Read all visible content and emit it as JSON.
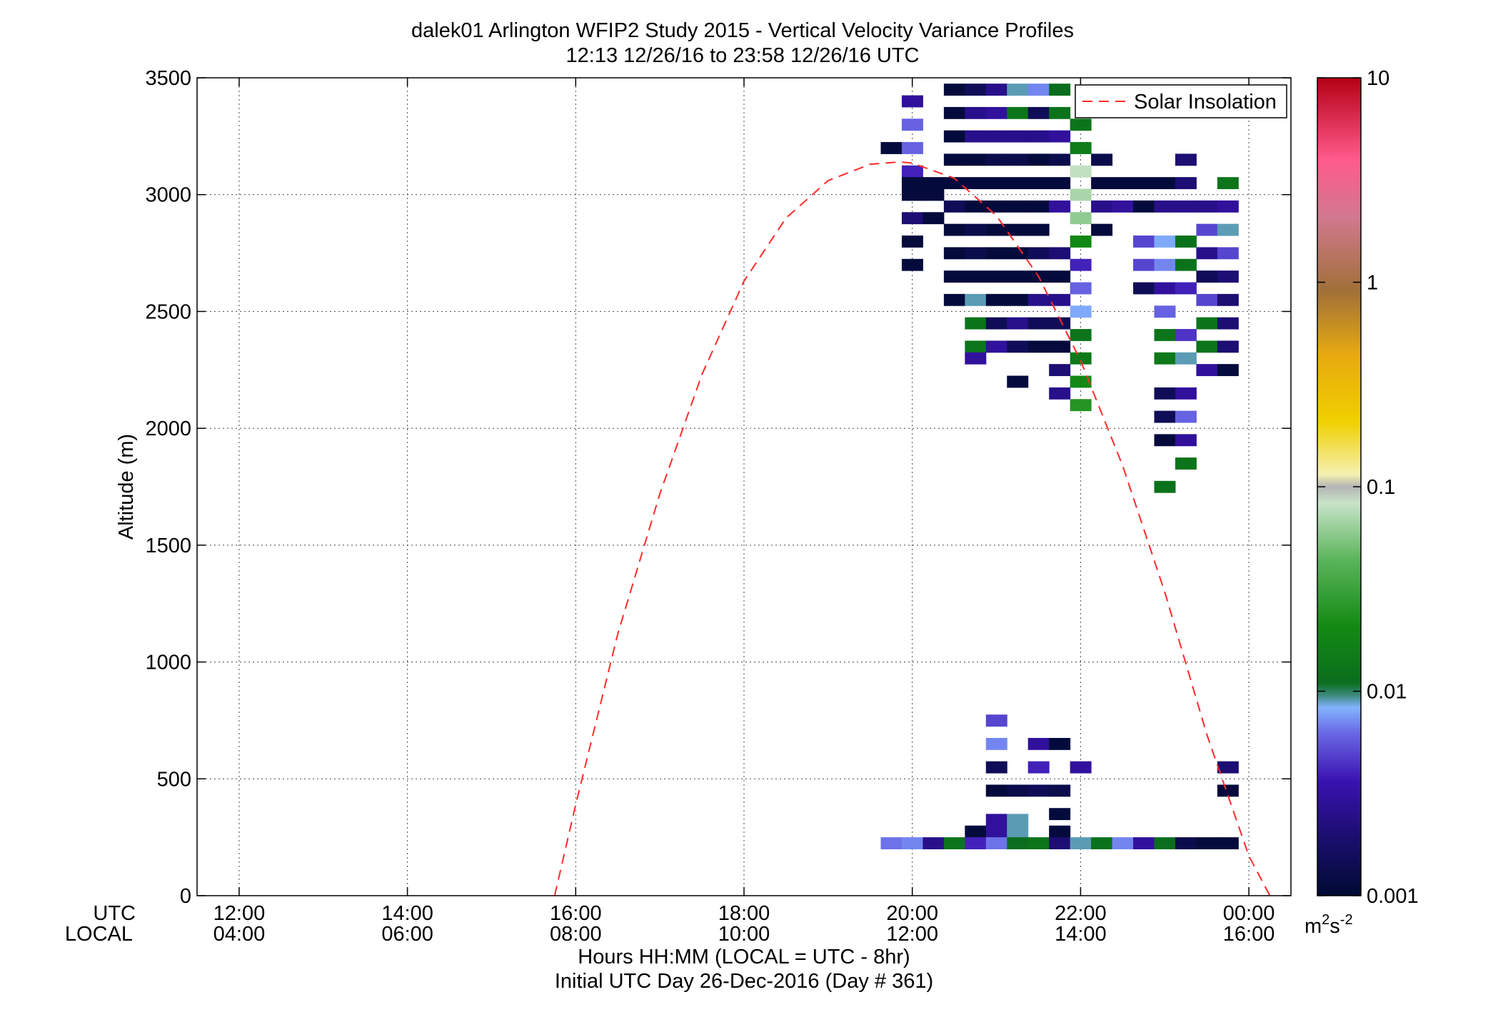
{
  "chart_data": {
    "type": "heatmap",
    "title": "dalek01 Arlington WFIP2 Study 2015 - Vertical Velocity Variance Profiles",
    "subtitle": "12:13 12/26/16 to 23:58 12/26/16  UTC",
    "ylabel": "Altitude (m)",
    "xlabel": "Hours HH:MM  (LOCAL = UTC - 8hr)",
    "xlabel2": "Initial UTC Day 26-Dec-2016 (Day # 361)",
    "x_row_labels": [
      "UTC",
      "LOCAL"
    ],
    "xlim": [
      11.5,
      24.5
    ],
    "ylim": [
      0,
      3500
    ],
    "x_ticks": [
      12,
      14,
      16,
      18,
      20,
      22,
      24
    ],
    "x_tick_labels_utc": [
      "12:00",
      "14:00",
      "16:00",
      "18:00",
      "20:00",
      "22:00",
      "00:00"
    ],
    "x_tick_labels_local": [
      "04:00",
      "06:00",
      "08:00",
      "10:00",
      "12:00",
      "14:00",
      "16:00"
    ],
    "y_ticks": [
      0,
      500,
      1000,
      1500,
      2000,
      2500,
      3000,
      3500
    ],
    "y_tick_labels": [
      "0",
      "500",
      "1000",
      "1500",
      "2000",
      "2500",
      "3000",
      "3500"
    ],
    "grid": true,
    "legend": {
      "position": "top-right",
      "entries": [
        {
          "name": "Solar Insolation",
          "color": "#ff2a2a",
          "style": "dashed"
        }
      ]
    },
    "colorbar": {
      "scale": "log",
      "range": [
        0.001,
        10
      ],
      "ticks": [
        0.001,
        0.01,
        0.1,
        1,
        10
      ],
      "tick_labels": [
        "0.001",
        "0.01",
        "0.1",
        "1",
        "10"
      ],
      "unit_label": "m2s-2"
    },
    "solar_insolation_curve": {
      "x": [
        15.75,
        16.0,
        16.5,
        17.0,
        17.5,
        18.0,
        18.5,
        19.0,
        19.5,
        19.85,
        20.0,
        20.5,
        21.0,
        21.5,
        22.0,
        22.5,
        23.0,
        23.5,
        24.0,
        24.25
      ],
      "y": [
        0,
        390,
        1120,
        1720,
        2230,
        2630,
        2900,
        3060,
        3130,
        3140,
        3135,
        3070,
        2910,
        2650,
        2290,
        1840,
        1300,
        690,
        170,
        -120
      ]
    },
    "cell_width_h": 0.25,
    "cell_height_m": 50,
    "columns": [
      {
        "t": 19.75,
        "cells": [
          [
            3200,
            0.0011
          ],
          [
            225,
            0.0065
          ]
        ]
      },
      {
        "t": 20.0,
        "cells": [
          [
            3400,
            0.003
          ],
          [
            3300,
            0.006
          ],
          [
            3200,
            0.006
          ],
          [
            3100,
            0.004
          ],
          [
            3050,
            0.0011
          ],
          [
            3000,
            0.0011
          ],
          [
            2900,
            0.002
          ],
          [
            2800,
            0.0011
          ],
          [
            2700,
            0.0011
          ],
          [
            225,
            0.007
          ]
        ]
      },
      {
        "t": 20.25,
        "cells": [
          [
            3050,
            0.0011
          ],
          [
            3000,
            0.0011
          ],
          [
            2900,
            0.0011
          ],
          [
            225,
            0.0025
          ]
        ]
      },
      {
        "t": 20.5,
        "cells": [
          [
            3450,
            0.0011
          ],
          [
            3350,
            0.0011
          ],
          [
            3250,
            0.0011
          ],
          [
            3150,
            0.0011
          ],
          [
            3050,
            0.0011
          ],
          [
            2950,
            0.0015
          ],
          [
            2850,
            0.0011
          ],
          [
            2750,
            0.0011
          ],
          [
            2650,
            0.0011
          ],
          [
            2550,
            0.0011
          ],
          [
            225,
            0.013
          ]
        ]
      },
      {
        "t": 20.75,
        "cells": [
          [
            3450,
            0.0015
          ],
          [
            3350,
            0.0025
          ],
          [
            3250,
            0.0025
          ],
          [
            3150,
            0.0011
          ],
          [
            3050,
            0.0011
          ],
          [
            2950,
            0.0011
          ],
          [
            2850,
            0.0013
          ],
          [
            2750,
            0.0013
          ],
          [
            2650,
            0.0011
          ],
          [
            2550,
            0.009
          ],
          [
            2450,
            0.013
          ],
          [
            2350,
            0.013
          ],
          [
            2300,
            0.003
          ],
          [
            275,
            0.0011
          ],
          [
            225,
            0.004
          ]
        ]
      },
      {
        "t": 21.0,
        "cells": [
          [
            3450,
            0.0025
          ],
          [
            3350,
            0.003
          ],
          [
            3250,
            0.0025
          ],
          [
            3150,
            0.0013
          ],
          [
            3050,
            0.0011
          ],
          [
            2950,
            0.0011
          ],
          [
            2850,
            0.0011
          ],
          [
            2750,
            0.0011
          ],
          [
            2650,
            0.0011
          ],
          [
            2550,
            0.0011
          ],
          [
            2450,
            0.0015
          ],
          [
            2350,
            0.003
          ],
          [
            750,
            0.005
          ],
          [
            650,
            0.007
          ],
          [
            550,
            0.0015
          ],
          [
            450,
            0.0011
          ],
          [
            325,
            0.003
          ],
          [
            275,
            0.003
          ],
          [
            225,
            0.0065
          ]
        ]
      },
      {
        "t": 21.25,
        "cells": [
          [
            3450,
            0.009
          ],
          [
            3350,
            0.013
          ],
          [
            3250,
            0.0025
          ],
          [
            3150,
            0.0013
          ],
          [
            3050,
            0.0011
          ],
          [
            2950,
            0.0011
          ],
          [
            2850,
            0.0011
          ],
          [
            2750,
            0.0011
          ],
          [
            2650,
            0.0011
          ],
          [
            2550,
            0.0011
          ],
          [
            2450,
            0.0025
          ],
          [
            2350,
            0.0015
          ],
          [
            2200,
            0.0011
          ],
          [
            450,
            0.0013
          ],
          [
            325,
            0.009
          ],
          [
            275,
            0.009
          ],
          [
            225,
            0.011
          ]
        ]
      },
      {
        "t": 21.5,
        "cells": [
          [
            3450,
            0.007
          ],
          [
            3350,
            0.0015
          ],
          [
            3250,
            0.0025
          ],
          [
            3150,
            0.0011
          ],
          [
            3050,
            0.0011
          ],
          [
            2950,
            0.0011
          ],
          [
            2850,
            0.0011
          ],
          [
            2750,
            0.0015
          ],
          [
            2650,
            0.0011
          ],
          [
            2550,
            0.0025
          ],
          [
            2450,
            0.0015
          ],
          [
            2350,
            0.0011
          ],
          [
            650,
            0.003
          ],
          [
            550,
            0.004
          ],
          [
            450,
            0.0015
          ],
          [
            225,
            0.013
          ]
        ]
      },
      {
        "t": 21.75,
        "cells": [
          [
            3450,
            0.011
          ],
          [
            3350,
            0.012
          ],
          [
            3250,
            0.003
          ],
          [
            3150,
            0.0013
          ],
          [
            3050,
            0.0011
          ],
          [
            2950,
            0.003
          ],
          [
            2750,
            0.002
          ],
          [
            2650,
            0.0011
          ],
          [
            2550,
            0.0025
          ],
          [
            2450,
            0.0015
          ],
          [
            2350,
            0.0011
          ],
          [
            2250,
            0.002
          ],
          [
            2150,
            0.0025
          ],
          [
            650,
            0.0011
          ],
          [
            450,
            0.0013
          ],
          [
            350,
            0.0011
          ],
          [
            275,
            0.0011
          ],
          [
            225,
            0.002
          ]
        ]
      },
      {
        "t": 22.0,
        "cells": [
          [
            3300,
            0.013
          ],
          [
            3200,
            0.015
          ],
          [
            3100,
            0.08
          ],
          [
            3000,
            0.07
          ],
          [
            2900,
            0.06
          ],
          [
            2800,
            0.02
          ],
          [
            2700,
            0.004
          ],
          [
            2600,
            0.006
          ],
          [
            2500,
            0.008
          ],
          [
            2400,
            0.013
          ],
          [
            2300,
            0.014
          ],
          [
            2200,
            0.02
          ],
          [
            2100,
            0.025
          ],
          [
            550,
            0.003
          ],
          [
            225,
            0.009
          ]
        ]
      },
      {
        "t": 22.25,
        "cells": [
          [
            3150,
            0.0013
          ],
          [
            3050,
            0.0011
          ],
          [
            2950,
            0.0025
          ],
          [
            2850,
            0.0011
          ],
          [
            225,
            0.012
          ]
        ]
      },
      {
        "t": 22.5,
        "cells": [
          [
            3050,
            0.0011
          ],
          [
            2950,
            0.003
          ],
          [
            225,
            0.007
          ]
        ]
      },
      {
        "t": 22.75,
        "cells": [
          [
            3050,
            0.0011
          ],
          [
            2950,
            0.0011
          ],
          [
            2800,
            0.005
          ],
          [
            2700,
            0.005
          ],
          [
            2600,
            0.0015
          ],
          [
            225,
            0.003
          ]
        ]
      },
      {
        "t": 23.0,
        "cells": [
          [
            3050,
            0.0011
          ],
          [
            2950,
            0.0025
          ],
          [
            2800,
            0.008
          ],
          [
            2700,
            0.007
          ],
          [
            2600,
            0.003
          ],
          [
            2500,
            0.006
          ],
          [
            2400,
            0.013
          ],
          [
            2300,
            0.014
          ],
          [
            2150,
            0.0015
          ],
          [
            2050,
            0.0015
          ],
          [
            1950,
            0.0011
          ],
          [
            1750,
            0.012
          ],
          [
            225,
            0.011
          ]
        ]
      },
      {
        "t": 23.25,
        "cells": [
          [
            3150,
            0.002
          ],
          [
            3050,
            0.002
          ],
          [
            2950,
            0.0025
          ],
          [
            2800,
            0.012
          ],
          [
            2700,
            0.012
          ],
          [
            2600,
            0.004
          ],
          [
            2400,
            0.0045
          ],
          [
            2300,
            0.009
          ],
          [
            2150,
            0.003
          ],
          [
            2050,
            0.006
          ],
          [
            1950,
            0.003
          ],
          [
            1850,
            0.013
          ],
          [
            225,
            0.0013
          ]
        ]
      },
      {
        "t": 23.5,
        "cells": [
          [
            2950,
            0.0025
          ],
          [
            2850,
            0.005
          ],
          [
            2750,
            0.0025
          ],
          [
            2650,
            0.0015
          ],
          [
            2550,
            0.005
          ],
          [
            2450,
            0.013
          ],
          [
            2350,
            0.013
          ],
          [
            2250,
            0.003
          ],
          [
            225,
            0.0011
          ]
        ]
      },
      {
        "t": 23.75,
        "cells": [
          [
            3050,
            0.013
          ],
          [
            2950,
            0.003
          ],
          [
            2850,
            0.009
          ],
          [
            2750,
            0.005
          ],
          [
            2650,
            0.002
          ],
          [
            2550,
            0.002
          ],
          [
            2450,
            0.002
          ],
          [
            2350,
            0.002
          ],
          [
            2250,
            0.0011
          ],
          [
            550,
            0.002
          ],
          [
            450,
            0.0011
          ],
          [
            225,
            0.0011
          ]
        ]
      }
    ]
  }
}
